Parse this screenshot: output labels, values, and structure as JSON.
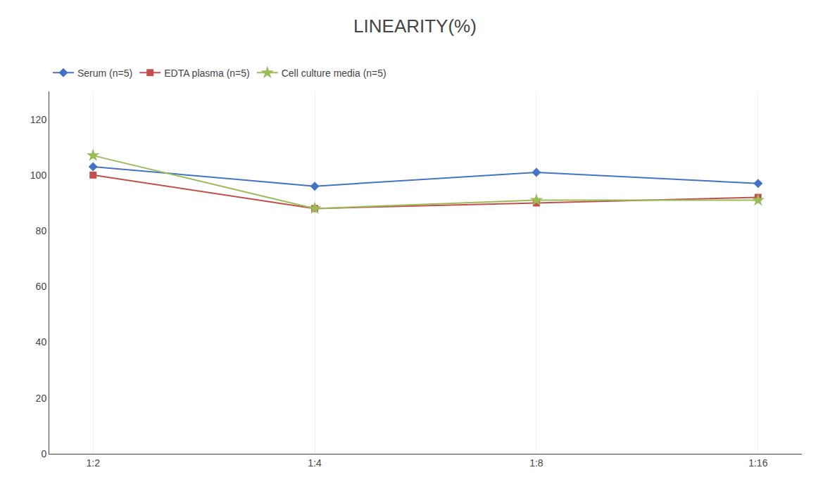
{
  "chart_data": {
    "type": "line",
    "title": "LINEARITY(%)",
    "categories": [
      "1:2",
      "1:4",
      "1:8",
      "1:16"
    ],
    "series": [
      {
        "name": "Serum (n=5)",
        "color": "#4472C4",
        "marker": "diamond",
        "values": [
          103,
          96,
          101,
          97
        ]
      },
      {
        "name": "EDTA plasma (n=5)",
        "color": "#C0504D",
        "marker": "square",
        "values": [
          100,
          88,
          90,
          92
        ]
      },
      {
        "name": "Cell culture media (n=5)",
        "color": "#9BBB59",
        "marker": "star",
        "values": [
          107,
          88,
          91,
          91
        ]
      }
    ],
    "ylim": [
      0,
      130
    ],
    "yticks": [
      0,
      20,
      40,
      60,
      80,
      100,
      120
    ],
    "grid": "x",
    "legend": "top"
  }
}
